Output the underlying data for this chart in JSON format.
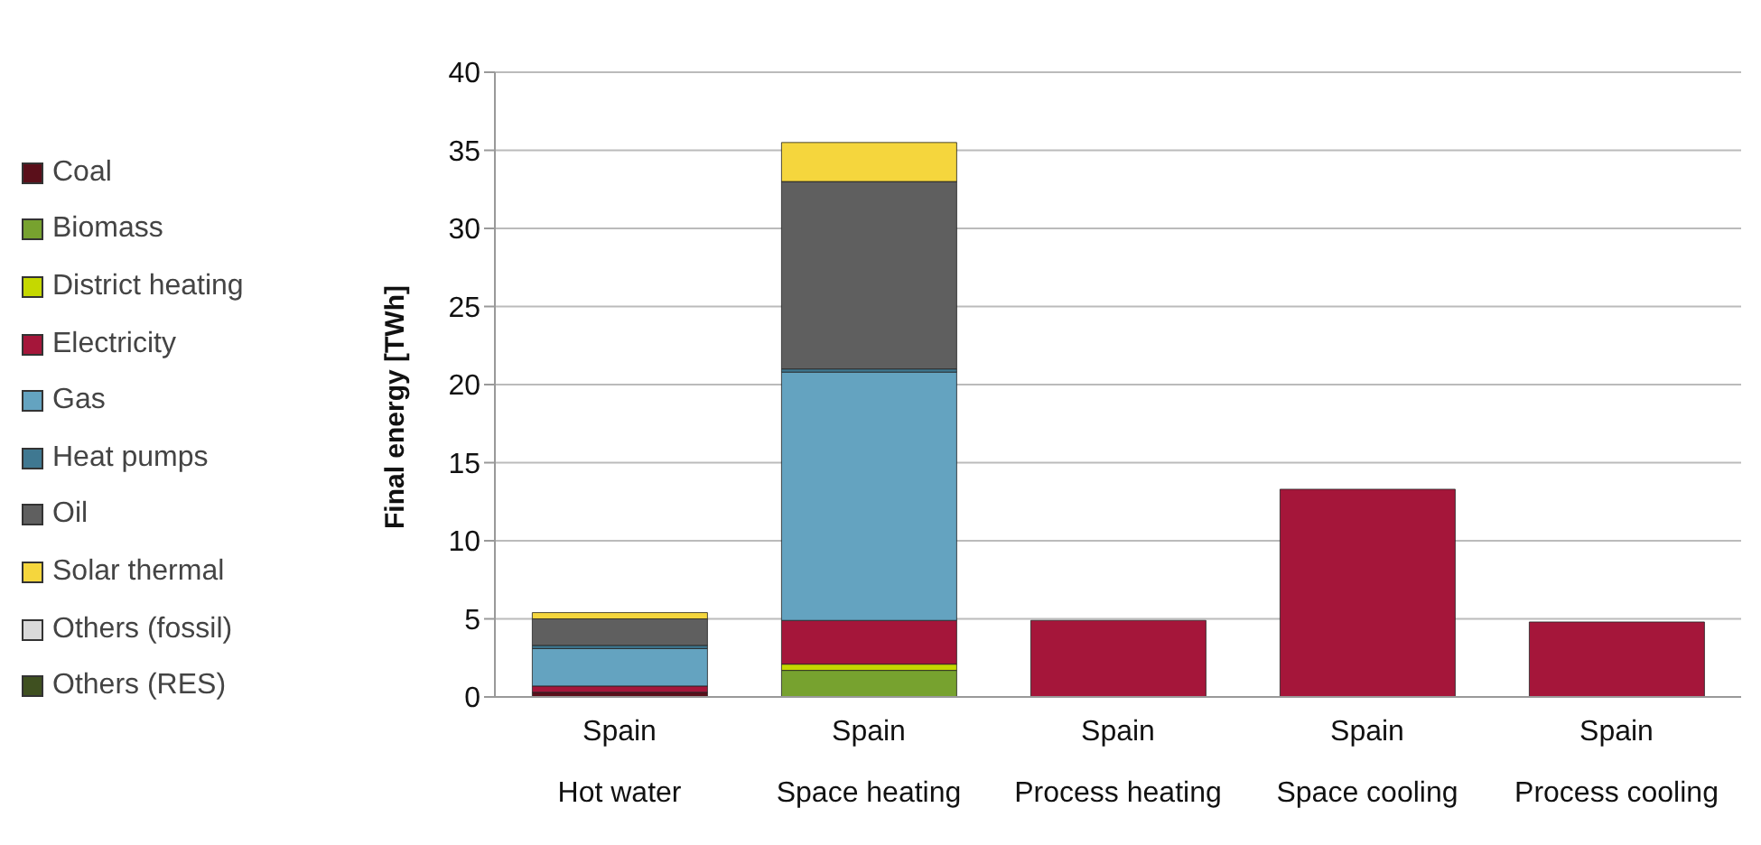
{
  "chart_data": {
    "type": "bar",
    "stacked": true,
    "ylabel": "Final energy [TWh]",
    "categories": [
      "Spain\nHot water",
      "Spain\nSpace heating",
      "Spain\nProcess heating",
      "Spain\nSpace cooling",
      "Spain\nProcess cooling"
    ],
    "series": [
      {
        "name": "Coal",
        "color": "#5a0f1a",
        "values": [
          0.3,
          0,
          0,
          0,
          0
        ]
      },
      {
        "name": "Biomass",
        "color": "#77a22f",
        "values": [
          0,
          1.7,
          0,
          0,
          0
        ]
      },
      {
        "name": "District heating",
        "color": "#c5d800",
        "values": [
          0,
          0.4,
          0,
          0,
          0
        ]
      },
      {
        "name": "Electricity",
        "color": "#a5163a",
        "values": [
          0.4,
          2.8,
          4.9,
          13.3,
          4.8
        ]
      },
      {
        "name": "Gas",
        "color": "#64a3c0",
        "values": [
          2.4,
          15.9,
          0,
          0,
          0
        ]
      },
      {
        "name": "Heat pumps",
        "color": "#3f7891",
        "values": [
          0.2,
          0.2,
          0,
          0,
          0
        ]
      },
      {
        "name": "Oil",
        "color": "#5f5f5f",
        "values": [
          1.7,
          12.0,
          0,
          0,
          0
        ]
      },
      {
        "name": "Solar thermal",
        "color": "#f5d63d",
        "values": [
          0.4,
          2.5,
          0,
          0,
          0
        ]
      },
      {
        "name": "Others (fossil)",
        "color": "#d9d9d9",
        "values": [
          0,
          0,
          0,
          0,
          0
        ]
      },
      {
        "name": "Others (RES)",
        "color": "#3f5020",
        "values": [
          0,
          0,
          0,
          0,
          0
        ]
      }
    ],
    "ylim": [
      0,
      40
    ],
    "yticks": [
      0,
      5,
      10,
      15,
      20,
      25,
      30,
      35,
      40
    ],
    "grid": "y",
    "legend": "left"
  }
}
